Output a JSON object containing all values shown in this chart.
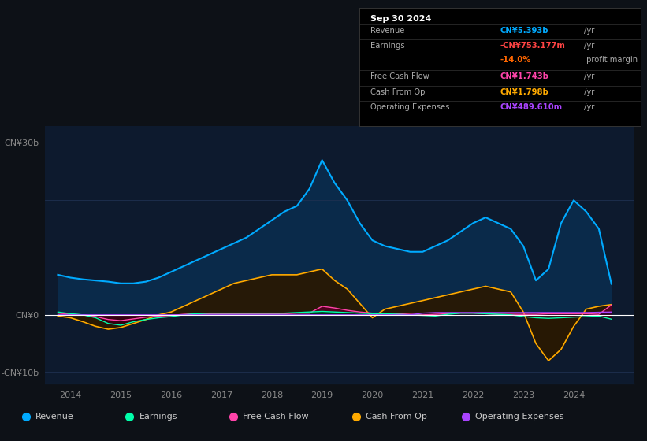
{
  "bg_color": "#0d1117",
  "chart_bg": "#0d1a2e",
  "grid_color": "#1e3050",
  "zero_line_color": "#ffffff",
  "ylim": [
    -12,
    33
  ],
  "info_box": {
    "title": "Sep 30 2024",
    "rows": [
      {
        "label": "Revenue",
        "value": "CN¥5.393b",
        "suffix": "/yr",
        "color": "#00aaff"
      },
      {
        "label": "Earnings",
        "value": "-CN¥753.177m",
        "suffix": "/yr",
        "color": "#ff4444"
      },
      {
        "label": "",
        "value": "-14.0%",
        "suffix": " profit margin",
        "color": "#ff6600"
      },
      {
        "label": "Free Cash Flow",
        "value": "CN¥1.743b",
        "suffix": "/yr",
        "color": "#ff44aa"
      },
      {
        "label": "Cash From Op",
        "value": "CN¥1.798b",
        "suffix": "/yr",
        "color": "#ffaa00"
      },
      {
        "label": "Operating Expenses",
        "value": "CN¥489.610m",
        "suffix": "/yr",
        "color": "#aa44ff"
      }
    ]
  },
  "series": {
    "years": [
      2013.75,
      2014.0,
      2014.25,
      2014.5,
      2014.75,
      2015.0,
      2015.25,
      2015.5,
      2015.75,
      2016.0,
      2016.25,
      2016.5,
      2016.75,
      2017.0,
      2017.25,
      2017.5,
      2017.75,
      2018.0,
      2018.25,
      2018.5,
      2018.75,
      2019.0,
      2019.25,
      2019.5,
      2019.75,
      2020.0,
      2020.25,
      2020.5,
      2020.75,
      2021.0,
      2021.25,
      2021.5,
      2021.75,
      2022.0,
      2022.25,
      2022.5,
      2022.75,
      2023.0,
      2023.25,
      2023.5,
      2023.75,
      2024.0,
      2024.25,
      2024.5,
      2024.75
    ],
    "revenue": [
      7.0,
      6.5,
      6.2,
      6.0,
      5.8,
      5.5,
      5.5,
      5.8,
      6.5,
      7.5,
      8.5,
      9.5,
      10.5,
      11.5,
      12.5,
      13.5,
      15.0,
      16.5,
      18.0,
      19.0,
      22.0,
      27.0,
      23.0,
      20.0,
      16.0,
      13.0,
      12.0,
      11.5,
      11.0,
      11.0,
      12.0,
      13.0,
      14.5,
      16.0,
      17.0,
      16.0,
      15.0,
      12.0,
      6.0,
      8.0,
      16.0,
      20.0,
      18.0,
      15.0,
      5.4
    ],
    "earnings": [
      0.5,
      0.2,
      0.0,
      -0.5,
      -1.5,
      -1.8,
      -1.2,
      -0.8,
      -0.5,
      -0.3,
      0.0,
      0.2,
      0.3,
      0.3,
      0.3,
      0.3,
      0.3,
      0.3,
      0.3,
      0.4,
      0.5,
      0.6,
      0.5,
      0.4,
      0.3,
      0.2,
      0.2,
      0.1,
      0.0,
      -0.1,
      -0.2,
      0.1,
      0.3,
      0.3,
      0.2,
      0.1,
      0.0,
      -0.3,
      -0.5,
      -0.6,
      -0.5,
      -0.4,
      -0.3,
      -0.2,
      -0.75
    ],
    "free_cash_flow": [
      0.3,
      0.1,
      0.0,
      -0.3,
      -0.8,
      -1.0,
      -0.7,
      -0.4,
      -0.2,
      -0.1,
      0.1,
      0.2,
      0.2,
      0.2,
      0.2,
      0.2,
      0.2,
      0.2,
      0.2,
      0.3,
      0.3,
      1.5,
      1.2,
      0.8,
      0.5,
      0.3,
      0.3,
      0.2,
      0.1,
      0.0,
      0.1,
      0.2,
      0.3,
      0.3,
      0.2,
      0.1,
      0.1,
      0.1,
      0.1,
      0.2,
      0.2,
      0.2,
      0.2,
      0.1,
      1.74
    ],
    "cash_from_op": [
      -0.2,
      -0.5,
      -1.2,
      -2.0,
      -2.5,
      -2.2,
      -1.5,
      -0.8,
      0.0,
      0.5,
      1.5,
      2.5,
      3.5,
      4.5,
      5.5,
      6.0,
      6.5,
      7.0,
      7.0,
      7.0,
      7.5,
      8.0,
      6.0,
      4.5,
      2.0,
      -0.5,
      1.0,
      1.5,
      2.0,
      2.5,
      3.0,
      3.5,
      4.0,
      4.5,
      5.0,
      4.5,
      4.0,
      0.5,
      -5.0,
      -8.0,
      -6.0,
      -2.0,
      1.0,
      1.5,
      1.8
    ],
    "operating_expenses": [
      0.0,
      0.0,
      0.0,
      0.0,
      0.0,
      0.0,
      0.0,
      0.0,
      0.0,
      0.0,
      0.0,
      0.0,
      0.0,
      0.0,
      0.0,
      0.0,
      0.0,
      0.0,
      0.0,
      0.0,
      0.0,
      0.0,
      0.0,
      0.0,
      0.0,
      0.0,
      0.0,
      0.0,
      0.0,
      0.3,
      0.4,
      0.4,
      0.4,
      0.4,
      0.4,
      0.4,
      0.4,
      0.4,
      0.4,
      0.4,
      0.4,
      0.4,
      0.4,
      0.45,
      0.49
    ]
  },
  "colors": {
    "revenue_line": "#00aaff",
    "revenue_fill": "#0a2a4a",
    "earnings_line": "#00ffaa",
    "earnings_fill_pos": "#003322",
    "earnings_fill_neg": "#330011",
    "free_cash_flow_line": "#ff44aa",
    "free_cash_flow_fill": "#550022",
    "cash_from_op_line": "#ffaa00",
    "cash_from_op_fill": "#2a1800",
    "operating_expenses_line": "#aa44ff",
    "operating_expenses_fill": "#220033"
  },
  "legend": [
    {
      "label": "Revenue",
      "color": "#00aaff"
    },
    {
      "label": "Earnings",
      "color": "#00ffaa"
    },
    {
      "label": "Free Cash Flow",
      "color": "#ff44aa"
    },
    {
      "label": "Cash From Op",
      "color": "#ffaa00"
    },
    {
      "label": "Operating Expenses",
      "color": "#aa44ff"
    }
  ]
}
